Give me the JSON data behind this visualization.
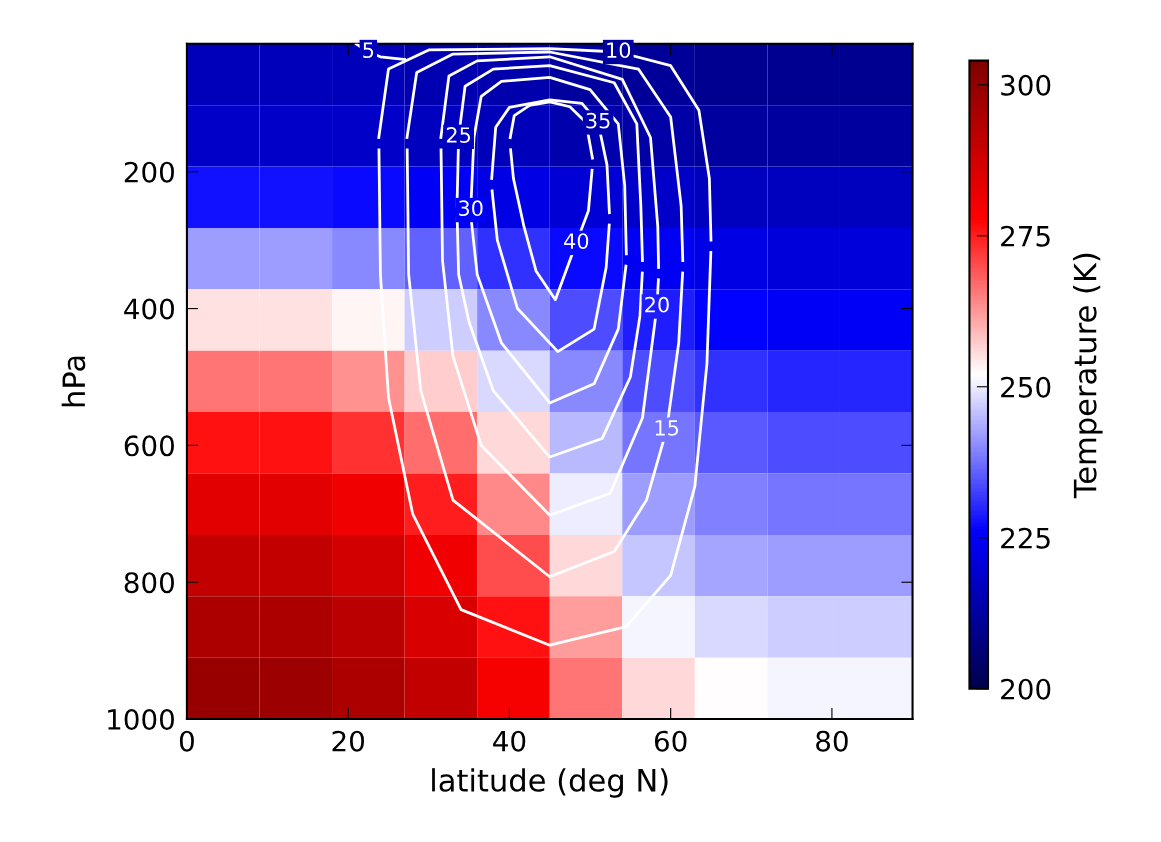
{
  "chart_data": {
    "type": "heatmap",
    "xlabel": "latitude (deg N)",
    "ylabel": "hPa",
    "clabel": "Temperature (K)",
    "xlim": [
      0,
      90
    ],
    "ylim": [
      1000,
      13
    ],
    "xticks": [
      0,
      20,
      40,
      60,
      80
    ],
    "yticks": [
      200,
      400,
      600,
      800,
      1000
    ],
    "clim": [
      200,
      304
    ],
    "cticks": [
      200,
      225,
      250,
      275,
      300
    ],
    "cells": [
      [
        216,
        216,
        216,
        215,
        214,
        212,
        211,
        210,
        210,
        210
      ],
      [
        218,
        218,
        218,
        217,
        216,
        214,
        213,
        212,
        212,
        212
      ],
      [
        228,
        228,
        227,
        225,
        222,
        220,
        218,
        217,
        217,
        217
      ],
      [
        242,
        242,
        240,
        236,
        231,
        227,
        224,
        222,
        221,
        221
      ],
      [
        255,
        255,
        253,
        247,
        240,
        234,
        229,
        226,
        225,
        225
      ],
      [
        266,
        266,
        263,
        257,
        248,
        240,
        234,
        231,
        230,
        230
      ],
      [
        276,
        276,
        273,
        267,
        256,
        245,
        238,
        235,
        234,
        234
      ],
      [
        284,
        284,
        281,
        275,
        264,
        250,
        242,
        239,
        238,
        238
      ],
      [
        290,
        290,
        287,
        281,
        270,
        256,
        246,
        243,
        242,
        242
      ],
      [
        295,
        295,
        292,
        286,
        276,
        262,
        251,
        248,
        247,
        247
      ],
      [
        299,
        298,
        295,
        290,
        280,
        266,
        256,
        252,
        251,
        251
      ]
    ],
    "series": [
      {
        "type": "line",
        "color": "#ffffff",
        "x": [
          40.1,
          40.6,
          42.5,
          45,
          47.5,
          49.5,
          50.3
        ],
        "values": [
          150,
          118,
          103,
          98,
          105,
          128,
          180
        ]
      },
      {
        "type": "line",
        "color": "#ffffff",
        "x": [
          40.15,
          40.5,
          41.8,
          43.3,
          45.7,
          48.3,
          49.8,
          50.25
        ],
        "values": [
          168,
          210,
          280,
          345,
          387,
          304,
          257,
          198
        ]
      },
      {
        "type": "line",
        "color": "#ffffff",
        "x": [
          37.8,
          38.3,
          40,
          45,
          49,
          51,
          52.1,
          52.4
        ],
        "values": [
          210,
          135,
          106,
          95,
          100,
          128,
          190,
          260
        ]
      },
      {
        "type": "line",
        "color": "#ffffff",
        "x": [
          37.85,
          38.5,
          41,
          46,
          50.5,
          52,
          52.38
        ],
        "values": [
          228,
          300,
          400,
          463,
          430,
          340,
          278
        ]
      },
      {
        "type": "line",
        "color": "#ffffff",
        "x": [
          35.2,
          35.6,
          36.5,
          39,
          45,
          50,
          53.5,
          54.3,
          54.5
        ],
        "values": [
          256,
          150,
          90,
          68,
          62,
          80,
          130,
          220,
          320
        ]
      },
      {
        "type": "line",
        "color": "#ffffff",
        "x": [
          35.3,
          36,
          39,
          45,
          50.5,
          53.5,
          54.45
        ],
        "values": [
          274,
          350,
          450,
          538,
          510,
          430,
          338
        ]
      },
      {
        "type": "line",
        "color": "#ffffff",
        "x": [
          33.5,
          33.7,
          34.5,
          38,
          45,
          53,
          55.8,
          56.3,
          56.5
        ],
        "values": [
          250,
          149,
          75,
          50,
          45,
          70,
          130,
          250,
          330
        ]
      },
      {
        "type": "line",
        "color": "#ffffff",
        "x": [
          33.52,
          33.7,
          35,
          38,
          45,
          51.5,
          55,
          56.2,
          56.48
        ],
        "values": [
          268,
          350,
          420,
          520,
          617,
          590,
          500,
          410,
          348
        ]
      },
      {
        "type": "line",
        "color": "#ffffff",
        "x": [
          31.5,
          32.5,
          36,
          45,
          54,
          57.5,
          58.4,
          58.5
        ],
        "values": [
          150,
          60,
          38,
          32,
          65,
          150,
          280,
          340
        ]
      },
      {
        "type": "line",
        "color": "#ffffff",
        "x": [
          31.52,
          31.7,
          33,
          36.5,
          45,
          52.5,
          56.5,
          58.3,
          58.48
        ],
        "values": [
          168,
          330,
          470,
          600,
          702,
          670,
          560,
          397,
          358
        ]
      },
      {
        "type": "line",
        "color": "#ffffff",
        "x": [
          27.3,
          28.5,
          33,
          45,
          56,
          60,
          61.3,
          61.5
        ],
        "values": [
          150,
          55,
          28,
          25,
          50,
          120,
          250,
          330
        ]
      },
      {
        "type": "line",
        "color": "#ffffff",
        "x": [
          27.32,
          27.5,
          29,
          33,
          45,
          53,
          57,
          59.5,
          61,
          61.48
        ],
        "values": [
          168,
          350,
          520,
          680,
          792,
          755,
          680,
          577,
          450,
          348
        ]
      },
      {
        "type": "line",
        "color": "#ffffff",
        "x": [
          23.8,
          25,
          30,
          45,
          53.5,
          60,
          63.5,
          64.8,
          65
        ],
        "values": [
          150,
          50,
          22,
          20,
          25,
          45,
          110,
          210,
          300
        ]
      },
      {
        "type": "line",
        "color": "#ffffff",
        "x": [
          23.82,
          24,
          25,
          28,
          34,
          45,
          54.5,
          60,
          63,
          64.5,
          64.98
        ],
        "values": [
          168,
          350,
          530,
          700,
          840,
          892,
          865,
          790,
          660,
          480,
          318
        ]
      },
      {
        "type": "line",
        "color": "#ffffff",
        "x": [
          21,
          22.5,
          24,
          27
        ],
        "values": [
          13,
          25,
          32,
          36
        ]
      }
    ],
    "annotations": [
      {
        "text": "5",
        "x": 22.5,
        "y": 25
      },
      {
        "text": "10",
        "x": 53.5,
        "y": 25
      },
      {
        "text": "15",
        "x": 59.5,
        "y": 577
      },
      {
        "text": "20",
        "x": 58.3,
        "y": 397
      },
      {
        "text": "25",
        "x": 33.7,
        "y": 149
      },
      {
        "text": "30",
        "x": 35.2,
        "y": 256
      },
      {
        "text": "35",
        "x": 51,
        "y": 128
      },
      {
        "text": "40",
        "x": 48.3,
        "y": 304
      }
    ],
    "grid": false
  }
}
